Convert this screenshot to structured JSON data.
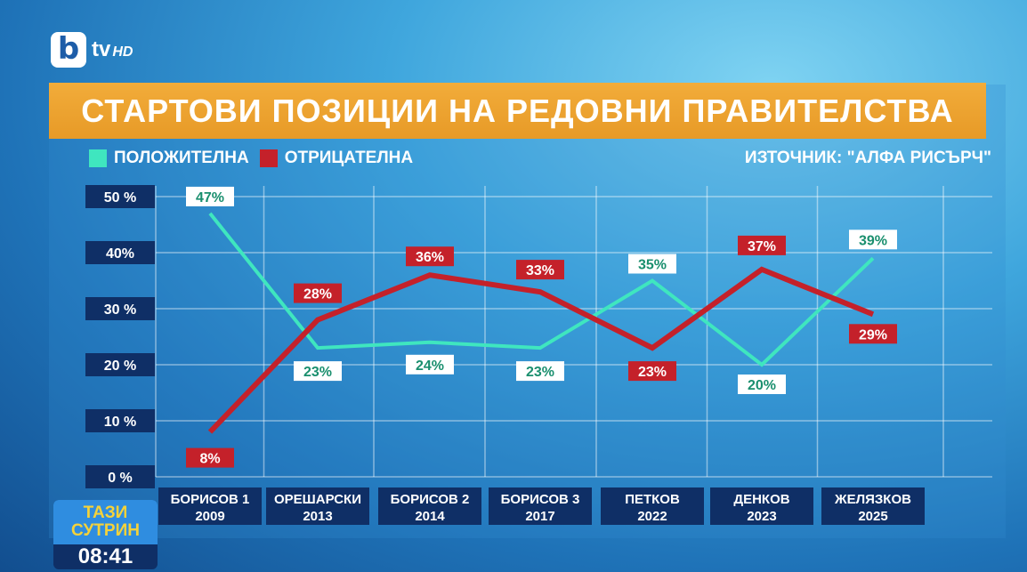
{
  "logo": {
    "b": "b",
    "tv": "tv",
    "hd": "HD"
  },
  "title": "СТАРТОВИ ПОЗИЦИИ НА РЕДОВНИ ПРАВИТЕЛСТВА",
  "source": "ИЗТОЧНИК: \"АЛФА РИСЪРЧ\"",
  "legend": {
    "positive": "ПОЛОЖИТЕЛНА",
    "negative": "ОТРИЦАТЕЛНА"
  },
  "colors": {
    "positive": "#3fe6bf",
    "negative": "#c4212a",
    "title_bar": "#eda232",
    "tick_box": "#0f2f66"
  },
  "badge": {
    "line1": "ТАЗИ",
    "line2": "СУТРИН",
    "time": "08:41"
  },
  "chart_data": {
    "type": "line",
    "title": "СТАРТОВИ ПОЗИЦИИ НА РЕДОВНИ ПРАВИТЕЛСТВА",
    "categories": [
      [
        "БОРИСОВ 1",
        "2009"
      ],
      [
        "ОРЕШАРСКИ",
        "2013"
      ],
      [
        "БОРИСОВ 2",
        "2014"
      ],
      [
        "БОРИСОВ 3",
        "2017"
      ],
      [
        "ПЕТКОВ",
        "2022"
      ],
      [
        "ДЕНКОВ",
        "2023"
      ],
      [
        "ЖЕЛЯЗКОВ",
        "2025"
      ]
    ],
    "y_ticks": [
      "50 %",
      "40%",
      "30 %",
      "20 %",
      "10 %",
      "0 %"
    ],
    "ylim": [
      0,
      50
    ],
    "grid": true,
    "legend_position": "top-left",
    "series": [
      {
        "name": "ПОЛОЖИТЕЛНА",
        "values": [
          47,
          23,
          24,
          23,
          35,
          20,
          39
        ],
        "labels": [
          "47%",
          "23%",
          "24%",
          "23%",
          "35%",
          "20%",
          "39%"
        ]
      },
      {
        "name": "ОТРИЦАТЕЛНА",
        "values": [
          8,
          28,
          36,
          33,
          23,
          37,
          29
        ],
        "labels": [
          "8%",
          "28%",
          "36%",
          "33%",
          "23%",
          "37%",
          "29%"
        ]
      }
    ]
  }
}
